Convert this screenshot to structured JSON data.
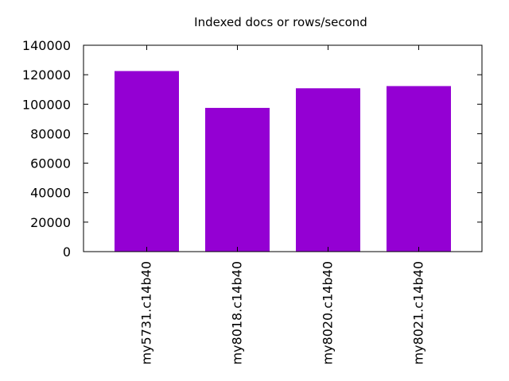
{
  "chart_data": {
    "type": "bar",
    "title": "Indexed docs or rows/second",
    "xlabel": "",
    "ylabel": "",
    "categories": [
      "my5731.c14b40",
      "my8018.c14b40",
      "my8020.c14b40",
      "my8021.c14b40"
    ],
    "values": [
      122500,
      97500,
      110800,
      112300
    ],
    "ylim": [
      0,
      140000
    ],
    "yticks": [
      0,
      20000,
      40000,
      60000,
      80000,
      100000,
      120000,
      140000
    ],
    "ytick_labels": [
      "0",
      "20000",
      "40000",
      "60000",
      "80000",
      "100000",
      "120000",
      "140000"
    ],
    "grid": false,
    "legend": "none",
    "bar_color": "#9400d3"
  }
}
